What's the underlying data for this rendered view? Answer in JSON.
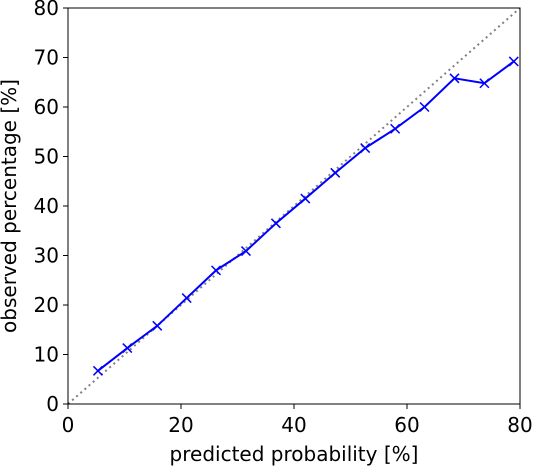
{
  "chart_data": {
    "type": "line",
    "title": "",
    "xlabel": "predicted probability [%]",
    "ylabel": "observed percentage [%]",
    "xlim": [
      0,
      80
    ],
    "ylim": [
      0,
      80
    ],
    "xticks": [
      0,
      20,
      40,
      60,
      80
    ],
    "yticks": [
      0,
      10,
      20,
      30,
      40,
      50,
      60,
      70,
      80
    ],
    "grid": false,
    "legend": "none",
    "reference_line": {
      "style": "dotted",
      "color": "#808080",
      "x": [
        0,
        80
      ],
      "y": [
        0,
        80
      ]
    },
    "series": [
      {
        "color": "#0000ff",
        "marker": "x",
        "x": [
          5.3,
          10.5,
          15.8,
          21.0,
          26.2,
          31.5,
          36.8,
          42.0,
          47.3,
          52.6,
          57.9,
          63.1,
          68.4,
          73.7,
          78.9
        ],
        "y": [
          6.7,
          11.3,
          15.8,
          21.4,
          27.0,
          30.9,
          36.5,
          41.5,
          46.7,
          51.7,
          55.6,
          60.0,
          65.8,
          64.8,
          69.2
        ]
      }
    ]
  }
}
